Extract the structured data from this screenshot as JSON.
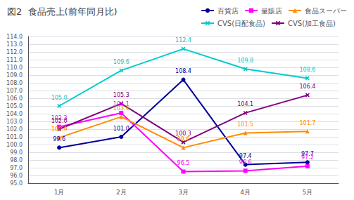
{
  "chart_data": {
    "type": "line",
    "title": "図2  食品売上(前年同月比)",
    "categories": [
      "1月",
      "2月",
      "3月",
      "4月",
      "5月"
    ],
    "ylim": [
      95.0,
      114.0
    ],
    "yticks": [
      {
        "value": 95,
        "label": "95.0"
      },
      {
        "value": 96,
        "label": "96.0"
      },
      {
        "value": 97,
        "label": "97.0"
      },
      {
        "value": 98,
        "label": "98.0"
      },
      {
        "value": 99,
        "label": "99.0"
      },
      {
        "value": 100,
        "label": "100.0"
      },
      {
        "value": 101,
        "label": "101.0"
      },
      {
        "value": 102,
        "label": "102.0"
      },
      {
        "value": 103,
        "label": "103.0"
      },
      {
        "value": 104,
        "label": "104.0"
      },
      {
        "value": 105,
        "label": "105.0"
      },
      {
        "value": 106,
        "label": "106.0"
      },
      {
        "value": 107,
        "label": "107.0"
      },
      {
        "value": 108,
        "label": "108.0"
      },
      {
        "value": 109,
        "label": "109.0"
      },
      {
        "value": 110,
        "label": "110.0"
      },
      {
        "value": 111,
        "label": "111.0"
      },
      {
        "value": 112,
        "label": "112.0"
      },
      {
        "value": 113,
        "label": "113.0"
      },
      {
        "value": 114,
        "label": "114.0"
      }
    ],
    "grid": true,
    "legend": "upper right",
    "data_labels": true,
    "series": [
      {
        "name": "百貨店",
        "color": "#000099",
        "marker": "circle",
        "values": [
          99.6,
          101.0,
          108.4,
          97.4,
          97.7
        ],
        "value_labels": [
          "99.6",
          "101.0",
          "108.4",
          "97.4",
          "97.7"
        ]
      },
      {
        "name": "量販店",
        "color": "#FF00FF",
        "marker": "square",
        "values": [
          102.3,
          104.1,
          96.5,
          96.6,
          97.2
        ],
        "value_labels": [
          "102.3",
          "104.1",
          "96.5",
          "96.6",
          "97.2"
        ]
      },
      {
        "name": "食品スーパー",
        "color": "#FF8C00",
        "marker": "triangle",
        "values": [
          100.9,
          103.6,
          99.6,
          101.5,
          101.7
        ],
        "value_labels": [
          "100.9",
          "103.6",
          "99.6",
          "101.5",
          "101.7"
        ]
      },
      {
        "name": "CVS(日配食品)",
        "color": "#00CCCC",
        "marker": "x",
        "values": [
          105.0,
          109.6,
          112.4,
          109.8,
          108.6
        ],
        "value_labels": [
          "105.0",
          "109.6",
          "112.4",
          "109.8",
          "108.6"
        ]
      },
      {
        "name": "CVS(加工食品)",
        "color": "#800080",
        "marker": "x",
        "values": [
          102.0,
          105.3,
          100.3,
          104.1,
          106.4
        ],
        "value_labels": [
          "102.0",
          "105.3",
          "100.3",
          "104.1",
          "106.4"
        ]
      }
    ]
  }
}
